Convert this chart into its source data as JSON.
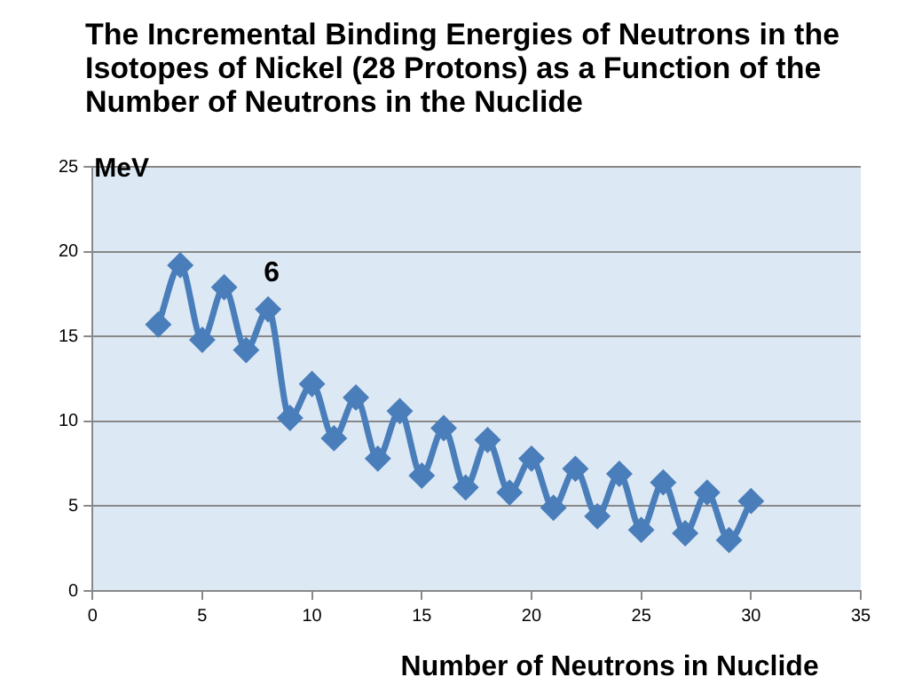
{
  "chart_data": {
    "type": "line",
    "title": "The Incremental Binding Energies of Neutrons in the Isotopes of Nickel  (28 Protons) as a Function of the Number of Neutrons in the Nuclide",
    "xlabel": "Number of Neutrons in Nuclide",
    "ylabel": "MeV",
    "x": [
      3,
      4,
      5,
      6,
      7,
      8,
      9,
      10,
      11,
      12,
      13,
      14,
      15,
      16,
      17,
      18,
      19,
      20,
      21,
      22,
      23,
      24,
      25,
      26,
      27,
      28,
      29,
      30
    ],
    "series": [
      {
        "color": "#4a7ebb",
        "values": [
          15.7,
          19.2,
          14.8,
          17.9,
          14.2,
          16.6,
          10.2,
          12.2,
          9.0,
          11.4,
          7.8,
          10.6,
          6.8,
          9.6,
          6.1,
          8.9,
          5.8,
          7.8,
          4.9,
          7.2,
          4.4,
          6.9,
          3.6,
          6.4,
          3.4,
          5.8,
          3.0,
          5.3
        ]
      }
    ],
    "xlim": [
      0,
      35
    ],
    "xticks": [
      0,
      5,
      10,
      15,
      20,
      25,
      30,
      35
    ],
    "ylim": [
      0,
      25
    ],
    "yticks": [
      0,
      5,
      10,
      15,
      20,
      25
    ],
    "grid": "y",
    "legend": false,
    "marker": "diamond",
    "line_style": "solid",
    "annotations": [
      {
        "text": "6",
        "x": 8,
        "y": 16.6
      }
    ]
  }
}
